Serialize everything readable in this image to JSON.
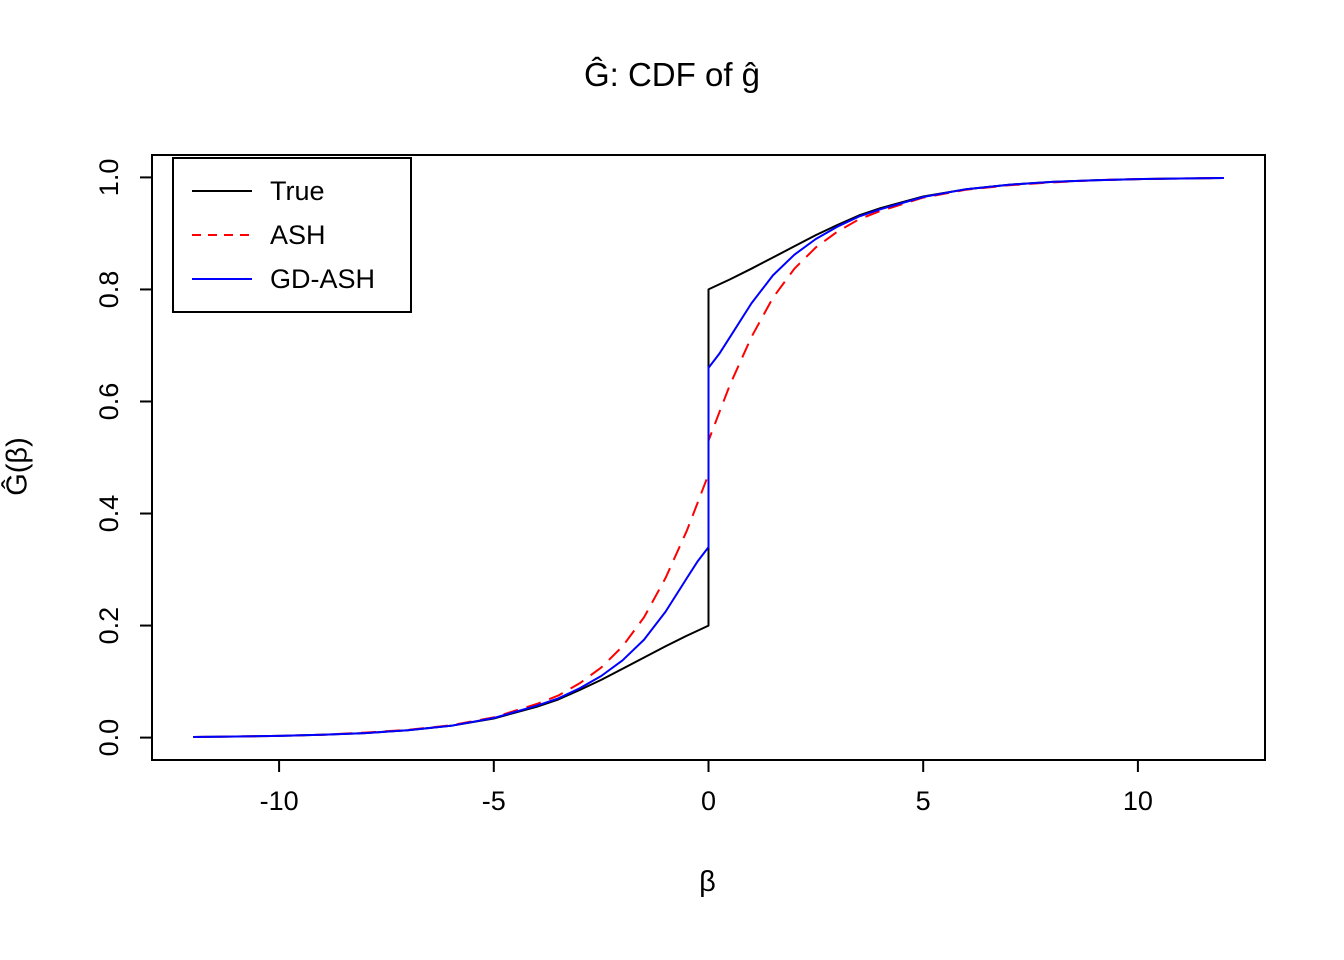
{
  "title": "Ĝ: CDF of ĝ",
  "axes": {
    "x_label": "β",
    "y_label": "Ĝ(β)"
  },
  "legend": {
    "entries": [
      {
        "label": "True",
        "color": "#000000",
        "style": "solid"
      },
      {
        "label": "ASH",
        "color": "#ff0000",
        "style": "dashed"
      },
      {
        "label": "GD-ASH",
        "color": "#0000ff",
        "style": "solid"
      }
    ]
  },
  "chart_data": {
    "type": "line",
    "title": "Ĝ: CDF of ĝ",
    "xlabel": "β",
    "ylabel": "Ĝ(β)",
    "xlim": [
      -12.96,
      12.96
    ],
    "ylim": [
      -0.04,
      1.04
    ],
    "grid": false,
    "legend_position": "top-left",
    "x_ticks": [
      -10,
      -5,
      0,
      5,
      10
    ],
    "x_tick_labels": [
      "-10",
      "-5",
      "0",
      "5",
      "10"
    ],
    "y_ticks": [
      0.0,
      0.2,
      0.4,
      0.6,
      0.8,
      1.0
    ],
    "y_tick_labels": [
      "0.0",
      "0.2",
      "0.4",
      "0.6",
      "0.8",
      "1.0"
    ],
    "series": [
      {
        "name": "True",
        "color": "#000000",
        "style": "solid",
        "points": [
          [
            -12,
            0.001
          ],
          [
            -11,
            0.002
          ],
          [
            -10,
            0.003
          ],
          [
            -9,
            0.005
          ],
          [
            -8,
            0.008
          ],
          [
            -7,
            0.013
          ],
          [
            -6,
            0.021
          ],
          [
            -5,
            0.034
          ],
          [
            -4,
            0.055
          ],
          [
            -3.5,
            0.068
          ],
          [
            -3,
            0.085
          ],
          [
            -2.5,
            0.103
          ],
          [
            -2,
            0.123
          ],
          [
            -1.5,
            0.143
          ],
          [
            -1,
            0.163
          ],
          [
            -0.5,
            0.182
          ],
          [
            -0.25,
            0.191
          ],
          [
            0,
            0.2
          ],
          [
            0,
            0.8
          ],
          [
            0.25,
            0.809
          ],
          [
            0.5,
            0.818
          ],
          [
            1,
            0.837
          ],
          [
            1.5,
            0.857
          ],
          [
            2,
            0.877
          ],
          [
            2.5,
            0.897
          ],
          [
            3,
            0.915
          ],
          [
            3.5,
            0.932
          ],
          [
            4,
            0.945
          ],
          [
            5,
            0.966
          ],
          [
            6,
            0.979
          ],
          [
            7,
            0.987
          ],
          [
            8,
            0.992
          ],
          [
            9,
            0.995
          ],
          [
            10,
            0.997
          ],
          [
            11,
            0.998
          ],
          [
            12,
            0.999
          ]
        ]
      },
      {
        "name": "ASH",
        "color": "#ff0000",
        "style": "dashed",
        "points": [
          [
            -12,
            0.001
          ],
          [
            -11,
            0.002
          ],
          [
            -10,
            0.003
          ],
          [
            -9,
            0.005
          ],
          [
            -8,
            0.009
          ],
          [
            -7,
            0.014
          ],
          [
            -6,
            0.022
          ],
          [
            -5,
            0.036
          ],
          [
            -4,
            0.06
          ],
          [
            -3.5,
            0.075
          ],
          [
            -3,
            0.097
          ],
          [
            -2.5,
            0.125
          ],
          [
            -2,
            0.163
          ],
          [
            -1.5,
            0.215
          ],
          [
            -1,
            0.285
          ],
          [
            -0.5,
            0.37
          ],
          [
            -0.25,
            0.42
          ],
          [
            0,
            0.47
          ],
          [
            0,
            0.53
          ],
          [
            0.25,
            0.58
          ],
          [
            0.5,
            0.63
          ],
          [
            1,
            0.715
          ],
          [
            1.5,
            0.785
          ],
          [
            2,
            0.837
          ],
          [
            2.5,
            0.875
          ],
          [
            3,
            0.903
          ],
          [
            3.5,
            0.925
          ],
          [
            4,
            0.94
          ],
          [
            5,
            0.964
          ],
          [
            6,
            0.978
          ],
          [
            7,
            0.986
          ],
          [
            8,
            0.991
          ],
          [
            9,
            0.995
          ],
          [
            10,
            0.997
          ],
          [
            11,
            0.998
          ],
          [
            12,
            0.999
          ]
        ]
      },
      {
        "name": "GD-ASH",
        "color": "#0000ff",
        "style": "solid",
        "points": [
          [
            -12,
            0.001
          ],
          [
            -11,
            0.002
          ],
          [
            -10,
            0.003
          ],
          [
            -9,
            0.005
          ],
          [
            -8,
            0.008
          ],
          [
            -7,
            0.013
          ],
          [
            -6,
            0.021
          ],
          [
            -5,
            0.035
          ],
          [
            -4,
            0.057
          ],
          [
            -3.5,
            0.07
          ],
          [
            -3,
            0.088
          ],
          [
            -2.5,
            0.11
          ],
          [
            -2,
            0.138
          ],
          [
            -1.5,
            0.175
          ],
          [
            -1,
            0.225
          ],
          [
            -0.5,
            0.285
          ],
          [
            -0.25,
            0.315
          ],
          [
            0,
            0.34
          ],
          [
            0,
            0.66
          ],
          [
            0.25,
            0.685
          ],
          [
            0.5,
            0.715
          ],
          [
            1,
            0.775
          ],
          [
            1.5,
            0.825
          ],
          [
            2,
            0.862
          ],
          [
            2.5,
            0.89
          ],
          [
            3,
            0.912
          ],
          [
            3.5,
            0.93
          ],
          [
            4,
            0.943
          ],
          [
            5,
            0.965
          ],
          [
            6,
            0.979
          ],
          [
            7,
            0.987
          ],
          [
            8,
            0.992
          ],
          [
            9,
            0.995
          ],
          [
            10,
            0.997
          ],
          [
            11,
            0.998
          ],
          [
            12,
            0.999
          ]
        ]
      }
    ]
  }
}
